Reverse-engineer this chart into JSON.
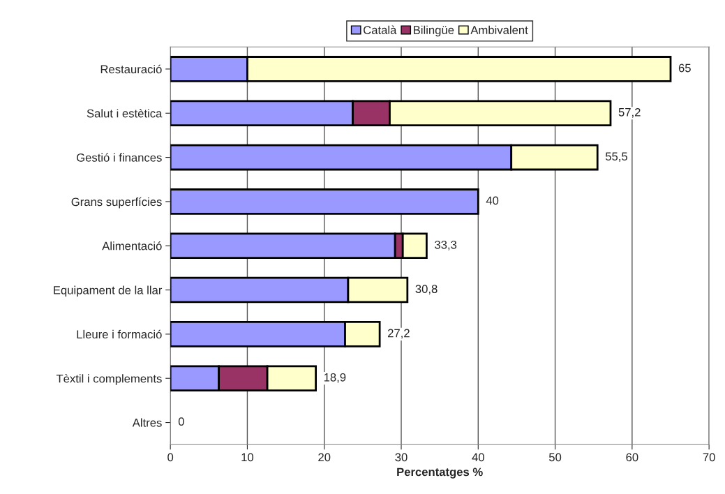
{
  "chart_data": {
    "type": "bar",
    "orientation": "horizontal",
    "stacked": true,
    "categories": [
      "Restauració",
      "Salut i estètica",
      "Gestió i finances",
      "Grans superfícies",
      "Alimentació",
      "Equipament de la llar",
      "Lleure i formació",
      "Tèxtil i complements",
      "Altres"
    ],
    "series": [
      {
        "name": "Català",
        "color": "#9999ff",
        "values": [
          10,
          23.7,
          44.3,
          40,
          29.2,
          23.1,
          22.7,
          6.3,
          0
        ]
      },
      {
        "name": "Bilingüe",
        "color": "#993366",
        "values": [
          0,
          4.8,
          0,
          0,
          1.0,
          0,
          0,
          6.3,
          0
        ]
      },
      {
        "name": "Ambivalent",
        "color": "#ffffcc",
        "values": [
          55,
          28.7,
          11.2,
          0,
          3.1,
          7.7,
          4.5,
          6.3,
          0
        ]
      }
    ],
    "totals": [
      "65",
      "57,2",
      "55,5",
      "40",
      "33,3",
      "30,8",
      "27,2",
      "18,9",
      "0"
    ],
    "xlabel": "Percentatges %",
    "xlim": [
      0,
      70
    ],
    "xticks": [
      0,
      10,
      20,
      30,
      40,
      50,
      60,
      70
    ],
    "grid": "x",
    "legend": "top"
  }
}
